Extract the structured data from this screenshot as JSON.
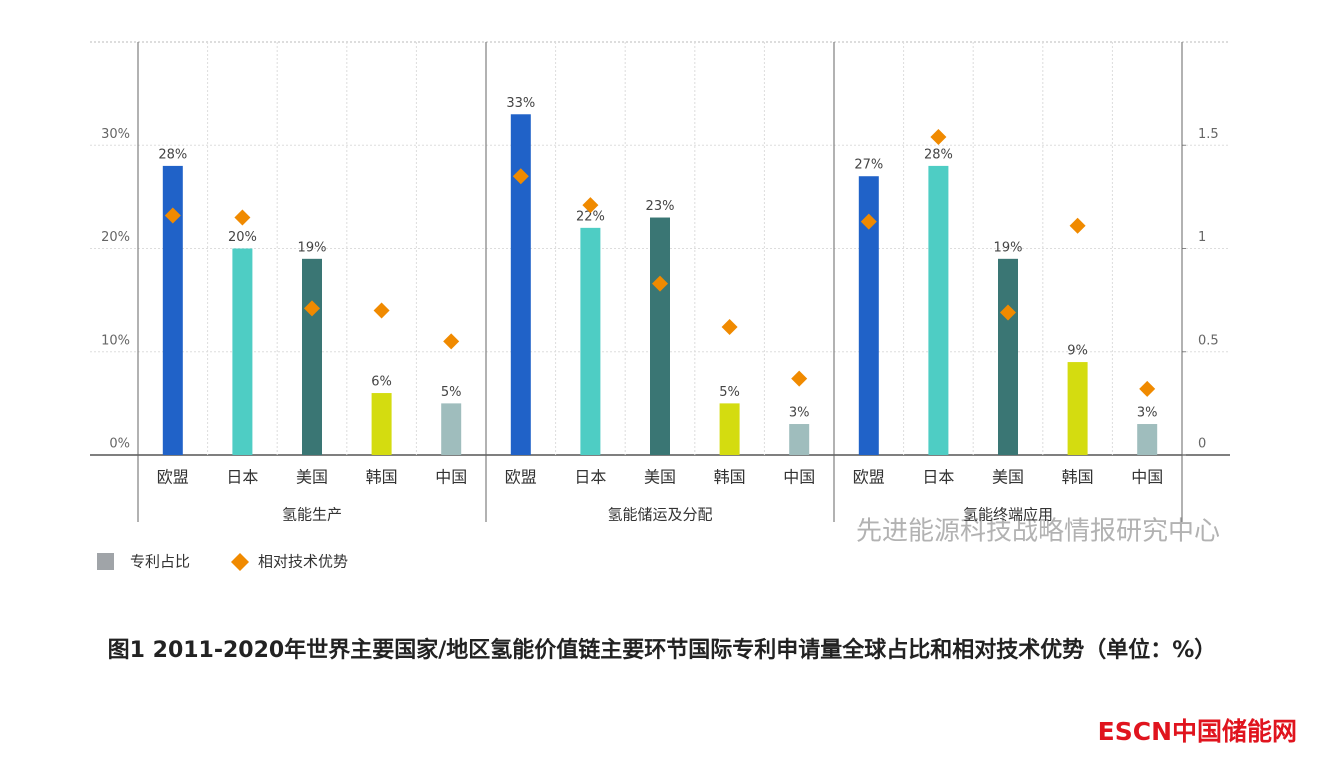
{
  "chart_data": {
    "type": "bar",
    "ylim": [
      0,
      40
    ],
    "yticks": [
      {
        "value": 0,
        "label": "0%"
      },
      {
        "value": 10,
        "label": "10%"
      },
      {
        "value": 20,
        "label": "20%"
      },
      {
        "value": 30,
        "label": "30%"
      }
    ],
    "y2lim": [
      0,
      2
    ],
    "y2ticks": [
      0,
      0.5,
      1,
      1.5
    ],
    "grid": true,
    "series": [
      {
        "name": "专利占比",
        "color": "#a0a4a8"
      },
      {
        "name": "相对技术优势",
        "color": "#f08a00",
        "axis": "y2"
      }
    ],
    "category_colors": [
      "#2062c8",
      "#4ecdc4",
      "#3a7674",
      "#d4dc10",
      "#9fbdbd"
    ],
    "groups": [
      {
        "name": "氢能生产",
        "categories": [
          "欧盟",
          "日本",
          "美国",
          "韩国",
          "中国"
        ],
        "bars": [
          28,
          20,
          19,
          6,
          5
        ],
        "bar_labels": [
          "28%",
          "20%",
          "19%",
          "6%",
          "5%"
        ],
        "diamonds": [
          1.16,
          1.15,
          0.71,
          0.7,
          0.55
        ]
      },
      {
        "name": "氢能储运及分配",
        "categories": [
          "欧盟",
          "日本",
          "美国",
          "韩国",
          "中国"
        ],
        "bars": [
          33,
          22,
          23,
          5,
          3
        ],
        "bar_labels": [
          "33%",
          "22%",
          "23%",
          "5%",
          "3%"
        ],
        "diamonds": [
          1.35,
          1.21,
          0.83,
          0.62,
          0.37
        ]
      },
      {
        "name": "氢能终端应用",
        "categories": [
          "欧盟",
          "日本",
          "美国",
          "韩国",
          "中国"
        ],
        "bars": [
          27,
          28,
          19,
          9,
          3
        ],
        "bar_labels": [
          "27%",
          "28%",
          "19%",
          "9%",
          "3%"
        ],
        "diamonds": [
          1.13,
          1.54,
          0.69,
          1.11,
          0.32
        ]
      }
    ],
    "watermark": "先进能源科技战略情报研究中心"
  },
  "caption": "图1 2011-2020年世界主要国家/地区氢能价值链主要环节国际专利申请量全球占比和相对技术优势（单位：%）",
  "logo": "ESCN中国储能网"
}
